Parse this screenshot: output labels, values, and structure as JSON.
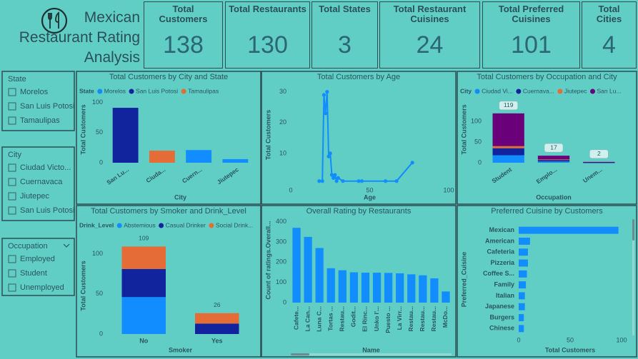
{
  "header": {
    "title_lines": [
      "Mexican",
      "Restaurant Rating",
      "Analysis"
    ]
  },
  "cards": [
    {
      "title": "Total Customers",
      "value": 138
    },
    {
      "title": "Total Restaurants",
      "value": 130
    },
    {
      "title": "Total States",
      "value": 3
    },
    {
      "title": "Total Restaurant Cuisines",
      "value": 24
    },
    {
      "title": "Total Preferred Cuisines",
      "value": 101
    },
    {
      "title": "Total Cities",
      "value": 4
    }
  ],
  "slicers": [
    {
      "title": "State",
      "items": [
        "Morelos",
        "San Luis Potosi",
        "Tamaulipas"
      ]
    },
    {
      "title": "City",
      "items": [
        "Ciudad Victo...",
        "Cuernavaca",
        "Jiutepec",
        "San Luis Potosi"
      ]
    },
    {
      "title": "Occupation",
      "items": [
        "Employed",
        "Student",
        "Unemployed"
      ]
    }
  ],
  "chart_data": [
    {
      "type": "bar",
      "stacked": true,
      "title": "Total Customers by City and State",
      "legend_title": "State",
      "categories": [
        "San Lu...",
        "Ciuda...",
        "Cuern...",
        "Jiutepec"
      ],
      "series": [
        {
          "name": "Morelos",
          "color": "#118dff",
          "values": [
            null,
            null,
            21,
            6
          ]
        },
        {
          "name": "San Luis Potosi",
          "color": "#12239e",
          "values": [
            91,
            null,
            null,
            null
          ]
        },
        {
          "name": "Tamaulipas",
          "color": "#e66c37",
          "values": [
            null,
            20,
            null,
            null
          ]
        }
      ],
      "ylim": [
        0,
        110
      ],
      "yticks": [
        0,
        50,
        100
      ],
      "xlabel": "City",
      "ylabel": "Total Customers"
    },
    {
      "type": "line",
      "title": "Total Customers by Age",
      "color": "#118dff",
      "x": [
        18,
        20,
        21,
        22,
        23,
        24,
        25,
        26,
        27,
        28,
        29,
        30,
        33,
        43,
        45,
        60,
        67,
        77
      ],
      "values": [
        1,
        1,
        29,
        23,
        30,
        9,
        10,
        3,
        2,
        3,
        1,
        2,
        1,
        1,
        1,
        1,
        1,
        7
      ],
      "xlim": [
        0,
        100
      ],
      "xticks": [
        0,
        50,
        100
      ],
      "ylim": [
        0,
        32
      ],
      "yticks": [
        10,
        20,
        30
      ],
      "xlabel": "Age",
      "ylabel": "Total Customers"
    },
    {
      "type": "bar",
      "stacked": true,
      "title": "Total Customers by Occupation and City",
      "legend_title": "City",
      "categories": [
        "Student",
        "Emplo...",
        "Unem..."
      ],
      "series": [
        {
          "name": "Ciudad Vi...",
          "color": "#118dff",
          "values": [
            18,
            3,
            null
          ]
        },
        {
          "name": "Cuernava...",
          "color": "#12239e",
          "values": [
            17,
            4,
            1
          ]
        },
        {
          "name": "Jiutepec",
          "color": "#e66c37",
          "values": [
            5,
            1,
            null
          ]
        },
        {
          "name": "San Lu...",
          "color": "#6b007b",
          "values": [
            79,
            9,
            1
          ]
        }
      ],
      "totals": [
        119,
        17,
        2
      ],
      "ylim": [
        0,
        160
      ],
      "yticks": [
        0,
        50,
        100
      ],
      "xlabel": "Occupation",
      "ylabel": "Total Customers"
    },
    {
      "type": "bar",
      "stacked": true,
      "title": "Total Customers by Smoker and Drink_Level",
      "legend_title": "Drink_Level",
      "categories": [
        "No",
        "Yes"
      ],
      "series": [
        {
          "name": "Abstemious",
          "color": "#118dff",
          "values": [
            46,
            null
          ]
        },
        {
          "name": "Casual Drinker",
          "color": "#12239e",
          "values": [
            35,
            13
          ]
        },
        {
          "name": "Social Drink...",
          "color": "#e66c37",
          "values": [
            28,
            13
          ]
        }
      ],
      "totals": [
        109,
        26
      ],
      "ylim": [
        0,
        120
      ],
      "yticks": [
        0,
        50,
        100
      ],
      "xlabel": "Smoker",
      "ylabel": "Total Customers"
    },
    {
      "type": "bar",
      "title": "Overall Rating by Restaurants",
      "color": "#118dff",
      "categories": [
        "Cafete...",
        "La Can...",
        "Luna C...",
        "Tortas ...",
        "Restau...",
        "Godit...",
        "El Rinc...",
        "Unko l'...",
        "Puesto ...",
        "La Virr...",
        "Restau...",
        "Restau...",
        "Restau...",
        "McDo..."
      ],
      "values": [
        370,
        325,
        270,
        170,
        160,
        150,
        148,
        148,
        147,
        145,
        140,
        135,
        120,
        55
      ],
      "ylim": [
        0,
        420
      ],
      "yticks": [
        0,
        100,
        200,
        300,
        400
      ],
      "xlabel": "Name",
      "ylabel": "Count of ratings.Overall..."
    },
    {
      "type": "hbar",
      "title": "Preferred Cuisine by Customers",
      "color": "#118dff",
      "categories": [
        "Mexican",
        "American",
        "Cafeteria",
        "Pizzeria",
        "Coffee S...",
        "Family",
        "Italian",
        "Japanese",
        "Burgers",
        "Chinese"
      ],
      "values": [
        97,
        11,
        9,
        9,
        8,
        7,
        6,
        6,
        5,
        5
      ],
      "xlim": [
        0,
        100
      ],
      "xticks": [
        0,
        50,
        100
      ],
      "xlabel": "Total Customers",
      "ylabel": "Preferred_Cuisine"
    }
  ]
}
